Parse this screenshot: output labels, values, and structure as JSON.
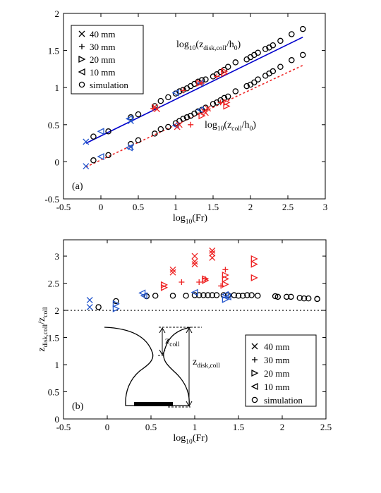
{
  "chart_data": [
    {
      "type": "scatter",
      "panel_label": "(a)",
      "xlabel": "log",
      "xlabel_sub": "10",
      "xlabel_tail": "(Fr)",
      "xlim": [
        -0.5,
        3
      ],
      "ylim": [
        -0.5,
        2
      ],
      "xticks": [
        -0.5,
        0,
        0.5,
        1,
        1.5,
        2,
        2.5,
        3
      ],
      "yticks": [
        -0.5,
        0,
        0.5,
        1,
        1.5,
        2
      ],
      "xtick_labels": [
        "-0.5",
        "0",
        "0.5",
        "1",
        "1.5",
        "2",
        "2.5",
        "3"
      ],
      "ytick_labels": [
        "-0.5",
        "0",
        "0.5",
        "1",
        "1.5",
        "2"
      ],
      "legend_position": "top-left",
      "legend": [
        "40 mm",
        "30 mm",
        "20 mm",
        "10 mm",
        "simulation"
      ],
      "annotations": [
        {
          "pre": "log",
          "sub1": "10",
          "mid": "(z",
          "sub2": "disk,coll",
          "mid2": "/h",
          "sub3": "0",
          "post": ")"
        },
        {
          "pre": "log",
          "sub1": "10",
          "mid": "(z",
          "sub2": "coll",
          "mid2": "/h",
          "sub3": "0",
          "post": ")"
        }
      ],
      "fit_lines": [
        {
          "color": "#0000cc",
          "style": "solid",
          "x": [
            -0.2,
            2.7
          ],
          "y": [
            0.25,
            1.68
          ]
        },
        {
          "color": "#ee2222",
          "style": "dotted",
          "x": [
            -0.2,
            2.7
          ],
          "y": [
            -0.07,
            1.3
          ]
        }
      ],
      "series": [
        {
          "name": "simulation",
          "marker": "circle",
          "color": "#000000",
          "x": [
            -0.1,
            0.1,
            0.4,
            0.5,
            0.72,
            0.8,
            0.9,
            1.0,
            1.05,
            1.1,
            1.15,
            1.2,
            1.25,
            1.3,
            1.35,
            1.4,
            1.5,
            1.55,
            1.6,
            1.65,
            1.7,
            1.8,
            1.95,
            2.0,
            2.05,
            2.1,
            2.2,
            2.25,
            2.3,
            2.4,
            2.55,
            2.7
          ],
          "y": [
            0.34,
            0.41,
            0.6,
            0.64,
            0.75,
            0.82,
            0.87,
            0.92,
            0.95,
            0.97,
            0.99,
            1.02,
            1.05,
            1.08,
            1.1,
            1.11,
            1.15,
            1.18,
            1.21,
            1.24,
            1.28,
            1.34,
            1.38,
            1.41,
            1.44,
            1.47,
            1.52,
            1.54,
            1.57,
            1.63,
            1.72,
            1.79
          ]
        },
        {
          "name": "simulation",
          "marker": "circle",
          "color": "#000000",
          "x": [
            -0.1,
            0.1,
            0.4,
            0.5,
            0.72,
            0.8,
            0.9,
            1.0,
            1.05,
            1.1,
            1.15,
            1.2,
            1.25,
            1.3,
            1.35,
            1.4,
            1.5,
            1.55,
            1.6,
            1.65,
            1.7,
            1.8,
            1.95,
            2.0,
            2.05,
            2.1,
            2.2,
            2.25,
            2.3,
            2.4,
            2.55,
            2.7
          ],
          "y": [
            0.02,
            0.09,
            0.24,
            0.29,
            0.38,
            0.44,
            0.47,
            0.52,
            0.55,
            0.58,
            0.6,
            0.62,
            0.65,
            0.68,
            0.7,
            0.73,
            0.78,
            0.8,
            0.83,
            0.86,
            0.88,
            0.95,
            1.02,
            1.04,
            1.07,
            1.11,
            1.16,
            1.19,
            1.22,
            1.28,
            1.37,
            1.44
          ]
        },
        {
          "name": "40 mm",
          "marker": "x",
          "color": "#2255cc",
          "x": [
            -0.2,
            -0.2,
            0.4,
            0.4
          ],
          "y": [
            0.27,
            -0.06,
            0.55,
            0.2
          ]
        },
        {
          "name": "10 mm",
          "marker": "tri-left",
          "color": "#2255cc",
          "x": [
            0.0,
            0.0,
            0.38,
            0.38,
            1.0,
            1.0,
            1.33,
            1.33
          ],
          "y": [
            0.41,
            0.07,
            0.58,
            0.19,
            0.93,
            0.49,
            1.06,
            0.7
          ]
        },
        {
          "name": "40 mm",
          "marker": "x",
          "color": "#ee2222",
          "x": [
            0.72,
            0.75,
            1.02,
            1.05,
            1.38,
            1.4,
            1.43
          ],
          "y": [
            0.74,
            0.71,
            0.47,
            0.5,
            0.68,
            0.66,
            0.72
          ]
        },
        {
          "name": "30 mm",
          "marker": "plus",
          "color": "#ee2222",
          "x": [
            0.7,
            1.1,
            1.2,
            1.35,
            1.55,
            1.6
          ],
          "y": [
            0.72,
            0.96,
            0.5,
            1.06,
            1.15,
            0.8
          ]
        },
        {
          "name": "20 mm",
          "marker": "tri-right",
          "color": "#ee2222",
          "x": [
            1.32,
            1.35,
            1.65,
            1.65,
            1.68,
            1.68
          ],
          "y": [
            1.06,
            0.62,
            1.19,
            1.22,
            0.8,
            0.75
          ]
        }
      ]
    },
    {
      "type": "scatter",
      "panel_label": "(b)",
      "xlabel": "log",
      "xlabel_sub": "10",
      "xlabel_tail": "(Fr)",
      "ylabel": "z",
      "ylabel_sub1": "disk,coll",
      "ylabel_mid": "/z",
      "ylabel_sub2": "coll",
      "xlim": [
        -0.5,
        2.5
      ],
      "ylim": [
        0,
        3.3
      ],
      "xticks": [
        -0.5,
        0,
        0.5,
        1,
        1.5,
        2,
        2.5
      ],
      "yticks": [
        0,
        0.5,
        1,
        1.5,
        2,
        2.5,
        3
      ],
      "xtick_labels": [
        "-0.5",
        "0",
        "0.5",
        "1",
        "1.5",
        "2",
        "2.5"
      ],
      "ytick_labels": [
        "0",
        "0.5",
        "1",
        "1.5",
        "2",
        "2.5",
        "3"
      ],
      "reference_line": {
        "y": 2,
        "style": "dotted"
      },
      "legend_position": "bottom-right",
      "legend": [
        "40 mm",
        "30 mm",
        "20 mm",
        "10 mm",
        "simulation"
      ],
      "inset": {
        "label_coll": "coll",
        "label_disk": "disk,coll",
        "symbol": "z"
      },
      "series": [
        {
          "name": "simulation",
          "marker": "circle",
          "color": "#000000",
          "x": [
            -0.1,
            0.1,
            0.45,
            0.55,
            0.75,
            0.9,
            1.0,
            1.05,
            1.1,
            1.15,
            1.2,
            1.25,
            1.33,
            1.38,
            1.45,
            1.5,
            1.55,
            1.6,
            1.65,
            1.72,
            1.92,
            1.95,
            2.05,
            2.1,
            2.2,
            2.25,
            2.3,
            2.4,
            2.4
          ],
          "y": [
            2.06,
            2.17,
            2.26,
            2.27,
            2.27,
            2.27,
            2.28,
            2.28,
            2.28,
            2.28,
            2.28,
            2.28,
            2.28,
            2.28,
            2.28,
            2.27,
            2.27,
            2.28,
            2.28,
            2.27,
            2.26,
            2.25,
            2.25,
            2.25,
            2.23,
            2.22,
            2.22,
            2.21,
            2.21
          ]
        },
        {
          "name": "40 mm",
          "marker": "x",
          "color": "#2255cc",
          "x": [
            -0.2,
            -0.2
          ],
          "y": [
            2.19,
            2.06
          ]
        },
        {
          "name": "20 mm",
          "marker": "tri-right",
          "color": "#2255cc",
          "x": [
            0.1,
            0.1,
            1.35
          ],
          "y": [
            2.12,
            2.03,
            2.2
          ]
        },
        {
          "name": "10 mm",
          "marker": "tri-left",
          "color": "#2255cc",
          "x": [
            0.4,
            0.42,
            1.0,
            1.35,
            1.38
          ],
          "y": [
            2.32,
            2.27,
            2.33,
            2.29,
            2.25
          ]
        },
        {
          "name": "40 mm",
          "marker": "x",
          "color": "#ee2222",
          "x": [
            0.75,
            0.75,
            1.0,
            1.0,
            1.0,
            1.2,
            1.2,
            1.2
          ],
          "y": [
            2.75,
            2.7,
            3.0,
            2.9,
            2.85,
            3.1,
            3.05,
            2.97
          ]
        },
        {
          "name": "30 mm",
          "marker": "plus",
          "color": "#ee2222",
          "x": [
            0.85,
            1.05,
            1.12,
            1.3,
            1.35
          ],
          "y": [
            2.52,
            2.52,
            2.58,
            2.45,
            2.75
          ]
        },
        {
          "name": "20 mm",
          "marker": "tri-right",
          "color": "#ee2222",
          "x": [
            0.65,
            0.65,
            1.12,
            1.12,
            1.35,
            1.35,
            1.35,
            1.68,
            1.68,
            1.68
          ],
          "y": [
            2.47,
            2.42,
            2.58,
            2.55,
            2.65,
            2.58,
            2.48,
            2.95,
            2.85,
            2.6
          ]
        }
      ]
    }
  ]
}
